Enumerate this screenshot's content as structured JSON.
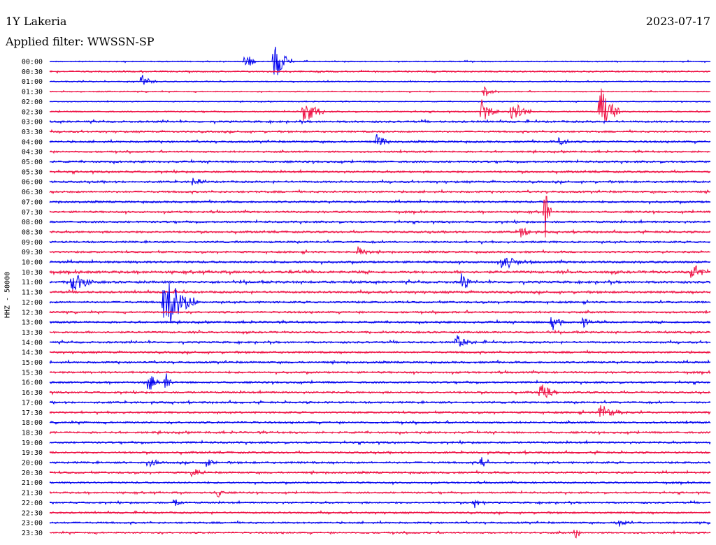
{
  "header": {
    "station": "1Y Lakeria",
    "date": "2023-07-17",
    "filter_prefix": "Applied filter:",
    "filter_name": "WWSSN-SP"
  },
  "channel_label": "HHZ - 50000",
  "colors": {
    "odd_rows": "#0000ee",
    "even_rows": "#ee1144"
  },
  "chart_data": {
    "type": "line",
    "title": "",
    "xlabel": "",
    "ylabel": "HHZ - 50000",
    "row_minutes": 30,
    "row_labels": [
      "00:00",
      "00:30",
      "01:00",
      "01:30",
      "02:00",
      "02:30",
      "03:00",
      "03:30",
      "04:00",
      "04:30",
      "05:00",
      "05:30",
      "06:00",
      "06:30",
      "07:00",
      "07:30",
      "08:00",
      "08:30",
      "09:00",
      "09:30",
      "10:00",
      "10:30",
      "11:00",
      "11:30",
      "12:00",
      "12:30",
      "13:00",
      "13:30",
      "14:00",
      "14:30",
      "15:00",
      "15:30",
      "16:00",
      "16:30",
      "17:00",
      "17:30",
      "18:00",
      "18:30",
      "19:00",
      "19:30",
      "20:00",
      "20:30",
      "21:00",
      "21:30",
      "22:00",
      "22:30",
      "23:00",
      "23:30"
    ],
    "row_colors": [
      "#0000ee",
      "#ee1144",
      "#0000ee",
      "#ee1144",
      "#0000ee",
      "#ee1144",
      "#0000ee",
      "#ee1144",
      "#0000ee",
      "#ee1144",
      "#0000ee",
      "#ee1144",
      "#0000ee",
      "#ee1144",
      "#0000ee",
      "#ee1144",
      "#0000ee",
      "#ee1144",
      "#0000ee",
      "#ee1144",
      "#0000ee",
      "#ee1144",
      "#0000ee",
      "#ee1144",
      "#0000ee",
      "#ee1144",
      "#0000ee",
      "#ee1144",
      "#0000ee",
      "#ee1144",
      "#0000ee",
      "#ee1144",
      "#0000ee",
      "#ee1144",
      "#0000ee",
      "#ee1144",
      "#0000ee",
      "#ee1144",
      "#0000ee",
      "#ee1144",
      "#0000ee",
      "#ee1144",
      "#0000ee",
      "#ee1144",
      "#0000ee",
      "#ee1144",
      "#0000ee",
      "#ee1144"
    ],
    "noise_levels": [
      0.6,
      0.8,
      0.6,
      0.6,
      0.5,
      0.7,
      1.0,
      0.9,
      1.0,
      0.9,
      1.0,
      1.0,
      1.0,
      1.0,
      1.0,
      1.0,
      1.0,
      1.0,
      1.0,
      1.0,
      1.1,
      1.3,
      1.2,
      1.1,
      1.0,
      1.0,
      1.0,
      1.0,
      1.0,
      1.0,
      1.0,
      1.0,
      1.0,
      1.0,
      1.0,
      1.0,
      1.0,
      1.0,
      1.0,
      1.0,
      1.0,
      1.0,
      0.9,
      0.9,
      0.9,
      0.9,
      0.9,
      0.9
    ],
    "events": [
      {
        "row": 0,
        "minute": 8.9,
        "amplitude": 1.2,
        "duration": 0.5
      },
      {
        "row": 0,
        "minute": 10.2,
        "amplitude": 2.5,
        "duration": 0.8
      },
      {
        "row": 2,
        "minute": 4.2,
        "amplitude": 0.8,
        "duration": 0.7
      },
      {
        "row": 3,
        "minute": 19.7,
        "amplitude": 0.9,
        "duration": 0.6
      },
      {
        "row": 5,
        "minute": 11.5,
        "amplitude": 1.8,
        "duration": 1.0
      },
      {
        "row": 5,
        "minute": 19.6,
        "amplitude": 1.5,
        "duration": 0.8
      },
      {
        "row": 5,
        "minute": 21.0,
        "amplitude": 1.4,
        "duration": 1.0
      },
      {
        "row": 5,
        "minute": 25.0,
        "amplitude": 3.0,
        "duration": 0.9
      },
      {
        "row": 8,
        "minute": 14.9,
        "amplitude": 1.3,
        "duration": 0.6
      },
      {
        "row": 8,
        "minute": 23.2,
        "amplitude": 0.9,
        "duration": 0.5
      },
      {
        "row": 12,
        "minute": 6.5,
        "amplitude": 0.7,
        "duration": 0.5
      },
      {
        "row": 15,
        "minute": 22.5,
        "amplitude": 3.0,
        "duration": 0.3
      },
      {
        "row": 17,
        "minute": 21.4,
        "amplitude": 0.9,
        "duration": 0.5
      },
      {
        "row": 19,
        "minute": 14.0,
        "amplitude": 0.8,
        "duration": 0.6
      },
      {
        "row": 20,
        "minute": 20.5,
        "amplitude": 0.9,
        "duration": 1.5
      },
      {
        "row": 21,
        "minute": 29.2,
        "amplitude": 1.0,
        "duration": 0.8
      },
      {
        "row": 22,
        "minute": 1.0,
        "amplitude": 1.5,
        "duration": 1.0
      },
      {
        "row": 22,
        "minute": 18.7,
        "amplitude": 1.6,
        "duration": 0.5
      },
      {
        "row": 24,
        "minute": 5.2,
        "amplitude": 3.5,
        "duration": 1.5
      },
      {
        "row": 26,
        "minute": 22.8,
        "amplitude": 1.3,
        "duration": 0.6
      },
      {
        "row": 26,
        "minute": 24.2,
        "amplitude": 0.9,
        "duration": 0.4
      },
      {
        "row": 28,
        "minute": 18.5,
        "amplitude": 0.8,
        "duration": 0.9
      },
      {
        "row": 32,
        "minute": 4.5,
        "amplitude": 1.2,
        "duration": 0.6
      },
      {
        "row": 32,
        "minute": 5.3,
        "amplitude": 1.0,
        "duration": 0.3
      },
      {
        "row": 33,
        "minute": 22.3,
        "amplitude": 1.1,
        "duration": 0.8
      },
      {
        "row": 35,
        "minute": 25.0,
        "amplitude": 1.0,
        "duration": 1.3
      },
      {
        "row": 40,
        "minute": 4.5,
        "amplitude": 0.7,
        "duration": 0.5
      },
      {
        "row": 40,
        "minute": 7.2,
        "amplitude": 0.7,
        "duration": 0.4
      },
      {
        "row": 40,
        "minute": 19.6,
        "amplitude": 0.8,
        "duration": 0.5
      },
      {
        "row": 41,
        "minute": 6.5,
        "amplitude": 0.9,
        "duration": 0.5
      },
      {
        "row": 43,
        "minute": 7.6,
        "amplitude": 0.7,
        "duration": 0.5
      },
      {
        "row": 44,
        "minute": 5.7,
        "amplitude": 0.7,
        "duration": 0.4
      },
      {
        "row": 44,
        "minute": 19.3,
        "amplitude": 0.7,
        "duration": 0.5
      },
      {
        "row": 46,
        "minute": 25.8,
        "amplitude": 0.7,
        "duration": 0.5
      },
      {
        "row": 47,
        "minute": 23.9,
        "amplitude": 1.1,
        "duration": 0.2
      }
    ]
  }
}
